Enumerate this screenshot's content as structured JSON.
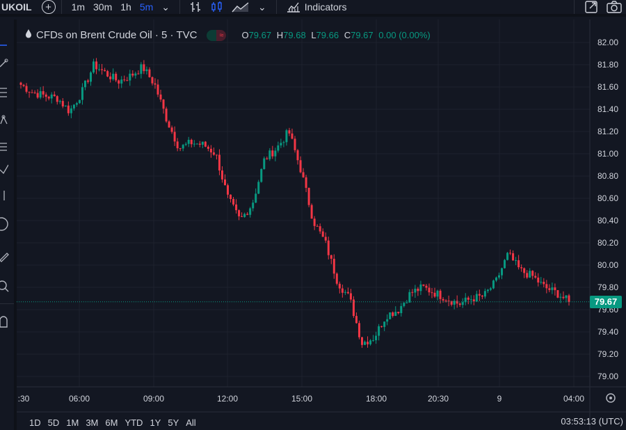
{
  "toolbar": {
    "symbol": "UKOIL",
    "intervals": [
      "1m",
      "30m",
      "1h",
      "5m"
    ],
    "active_interval": "5m",
    "indicators_label": "Indicators"
  },
  "legend": {
    "title": "CFDs on Brent Crude Oil · 5 · TVC",
    "open_label": "O",
    "open": "79.67",
    "high_label": "H",
    "high": "79.68",
    "low_label": "L",
    "low": "79.66",
    "close_label": "C",
    "close": "79.67",
    "change": "0.00 (0.00%)"
  },
  "price_tag": "79.67",
  "bottom": {
    "ranges": [
      "1D",
      "5D",
      "1M",
      "3M",
      "6M",
      "YTD",
      "1Y",
      "5Y",
      "All"
    ],
    "clock": "03:53:13 (UTC)"
  },
  "colors": {
    "background": "#131722",
    "up": "#089981",
    "down": "#f23645",
    "grid": "#1e222d",
    "axis_text": "#d1d4dc",
    "active": "#2962ff"
  },
  "chart_data": {
    "type": "candlestick",
    "title": "CFDs on Brent Crude Oil · 5 · TVC",
    "y_ticks": [
      79.0,
      79.2,
      79.4,
      79.6,
      79.8,
      80.0,
      80.2,
      80.4,
      80.6,
      80.8,
      81.0,
      81.2,
      81.4,
      81.6,
      81.8,
      82.0
    ],
    "ylim": [
      78.9,
      82.1
    ],
    "x_tick_labels": [
      ":30",
      "06:00",
      "09:00",
      "12:00",
      "15:00",
      "18:00",
      "20:30",
      "9",
      "04:00"
    ],
    "last_price": 79.67,
    "series": [
      {
        "name": "close",
        "points": [
          [
            ":30",
            81.62
          ],
          [
            "04:30",
            81.55
          ],
          [
            "05:00",
            81.52
          ],
          [
            "05:30",
            81.5
          ],
          [
            "06:00",
            81.38
          ],
          [
            "06:30",
            81.55
          ],
          [
            "07:00",
            81.8
          ],
          [
            "07:30",
            81.72
          ],
          [
            "08:00",
            81.65
          ],
          [
            "08:30",
            81.7
          ],
          [
            "09:00",
            81.78
          ],
          [
            "09:30",
            81.62
          ],
          [
            "10:00",
            81.3
          ],
          [
            "10:30",
            81.05
          ],
          [
            "11:00",
            81.1
          ],
          [
            "11:30",
            81.08
          ],
          [
            "12:00",
            81.0
          ],
          [
            "12:30",
            80.6
          ],
          [
            "13:00",
            80.4
          ],
          [
            "13:30",
            80.55
          ],
          [
            "14:00",
            80.95
          ],
          [
            "14:30",
            81.05
          ],
          [
            "15:00",
            81.2
          ],
          [
            "15:30",
            80.85
          ],
          [
            "16:00",
            80.4
          ],
          [
            "16:30",
            80.2
          ],
          [
            "17:00",
            79.85
          ],
          [
            "17:30",
            79.7
          ],
          [
            "18:00",
            79.3
          ],
          [
            "18:30",
            79.35
          ],
          [
            "19:00",
            79.55
          ],
          [
            "19:30",
            79.6
          ],
          [
            "20:00",
            79.75
          ],
          [
            "20:30",
            79.8
          ],
          [
            "21:00",
            79.75
          ],
          [
            "21:30",
            79.7
          ],
          [
            "22:00",
            79.65
          ],
          [
            "22:30",
            79.7
          ],
          [
            "23:00",
            79.72
          ],
          [
            "23:30",
            79.85
          ],
          [
            "00:30",
            80.1
          ],
          [
            "01:00",
            79.95
          ],
          [
            "01:30",
            79.9
          ],
          [
            "02:00",
            79.8
          ],
          [
            "03:00",
            79.75
          ],
          [
            "03:50",
            79.67
          ]
        ]
      }
    ]
  }
}
